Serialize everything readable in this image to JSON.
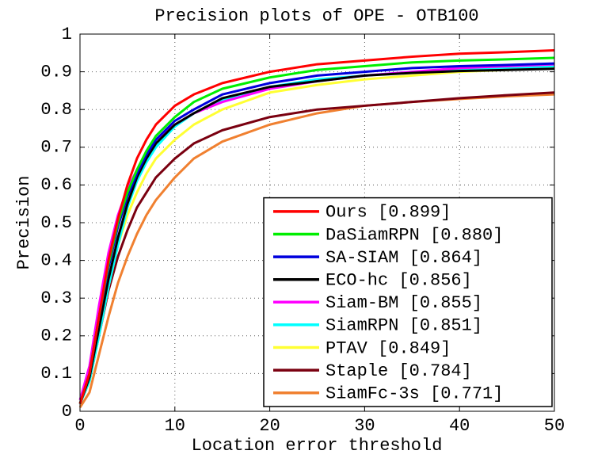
{
  "chart_data": {
    "type": "line",
    "title": "Precision plots of OPE - OTB100",
    "x_label": "Location error threshold",
    "y_label": "Precision",
    "x": [
      0,
      1,
      2,
      3,
      4,
      5,
      6,
      7,
      8,
      10,
      12,
      15,
      20,
      25,
      30,
      35,
      40,
      45,
      50
    ],
    "series": [
      {
        "name": "Ours [0.899]",
        "color": "#ff0000",
        "values": [
          0.02,
          0.1,
          0.25,
          0.4,
          0.51,
          0.6,
          0.67,
          0.72,
          0.76,
          0.81,
          0.84,
          0.87,
          0.9,
          0.92,
          0.93,
          0.94,
          0.948,
          0.952,
          0.957
        ]
      },
      {
        "name": "DaSiamRPN [0.880]",
        "color": "#00ee00",
        "values": [
          0.02,
          0.1,
          0.25,
          0.39,
          0.5,
          0.58,
          0.64,
          0.69,
          0.73,
          0.78,
          0.82,
          0.855,
          0.885,
          0.905,
          0.915,
          0.925,
          0.93,
          0.933,
          0.937
        ]
      },
      {
        "name": "SA-SIAM [0.864]",
        "color": "#0000dd",
        "values": [
          0.02,
          0.1,
          0.25,
          0.38,
          0.49,
          0.57,
          0.63,
          0.68,
          0.72,
          0.77,
          0.8,
          0.84,
          0.87,
          0.89,
          0.9,
          0.91,
          0.915,
          0.918,
          0.922
        ]
      },
      {
        "name": "ECO-hc [0.856]",
        "color": "#000000",
        "values": [
          0.02,
          0.09,
          0.22,
          0.35,
          0.46,
          0.55,
          0.62,
          0.67,
          0.71,
          0.76,
          0.79,
          0.83,
          0.86,
          0.875,
          0.89,
          0.897,
          0.902,
          0.905,
          0.908
        ]
      },
      {
        "name": "Siam-BM [0.855]",
        "color": "#ff00ff",
        "values": [
          0.03,
          0.12,
          0.28,
          0.42,
          0.52,
          0.59,
          0.64,
          0.68,
          0.72,
          0.76,
          0.79,
          0.82,
          0.855,
          0.875,
          0.89,
          0.9,
          0.91,
          0.915,
          0.92
        ]
      },
      {
        "name": "SiamRPN [0.851]",
        "color": "#00ffff",
        "values": [
          0.02,
          0.08,
          0.2,
          0.33,
          0.44,
          0.54,
          0.61,
          0.66,
          0.7,
          0.755,
          0.79,
          0.825,
          0.86,
          0.88,
          0.89,
          0.9,
          0.905,
          0.91,
          0.915
        ]
      },
      {
        "name": "PTAV [0.849]",
        "color": "#ffff33",
        "values": [
          0.02,
          0.08,
          0.2,
          0.33,
          0.44,
          0.52,
          0.58,
          0.63,
          0.67,
          0.72,
          0.76,
          0.8,
          0.845,
          0.865,
          0.88,
          0.89,
          0.9,
          0.905,
          0.91
        ]
      },
      {
        "name": "Staple [0.784]",
        "color": "#7a0010",
        "values": [
          0.02,
          0.08,
          0.2,
          0.32,
          0.41,
          0.48,
          0.54,
          0.58,
          0.62,
          0.67,
          0.71,
          0.745,
          0.78,
          0.8,
          0.81,
          0.82,
          0.83,
          0.838,
          0.845
        ]
      },
      {
        "name": "SiamFc-3s [0.771]",
        "color": "#f08030",
        "values": [
          0.01,
          0.05,
          0.15,
          0.25,
          0.34,
          0.41,
          0.47,
          0.52,
          0.56,
          0.62,
          0.67,
          0.715,
          0.76,
          0.79,
          0.81,
          0.82,
          0.828,
          0.835,
          0.84
        ]
      }
    ],
    "xlim": [
      0,
      50
    ],
    "xticks": [
      0,
      10,
      20,
      30,
      40,
      50
    ],
    "ylim": [
      0,
      1
    ],
    "yticks": [
      0,
      0.1,
      0.2,
      0.3,
      0.4,
      0.5,
      0.6,
      0.7,
      0.8,
      0.9,
      1
    ],
    "grid": true,
    "legend": "lower right"
  }
}
